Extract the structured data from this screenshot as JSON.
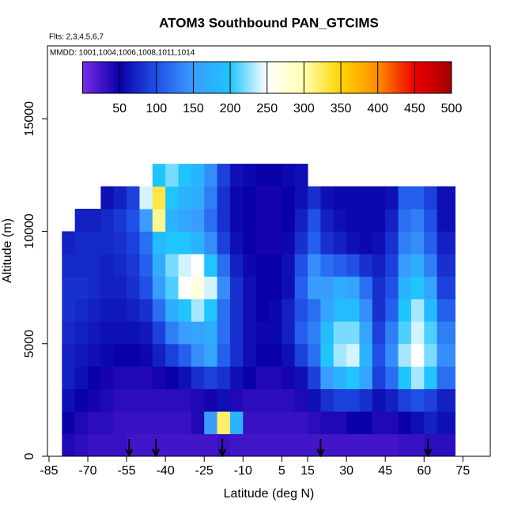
{
  "chart_data": {
    "type": "heatmap",
    "title": "ATOM3 Southbound PAN_GTCIMS",
    "subtitle": "Flts: 2,3,4,5,6,7",
    "annotation": "MMDD: 1001,1004,1006,1008,1011,1014",
    "x_label": "Latitude (deg N)",
    "y_label": "Altitude (m)",
    "xlim": [
      -85.6,
      85.6
    ],
    "ylim": [
      0,
      18240
    ],
    "xticks": [
      -85,
      -70,
      -55,
      -40,
      -25,
      -10,
      5,
      15,
      30,
      45,
      60,
      75
    ],
    "yticks": [
      0,
      5000,
      10000,
      15000
    ],
    "clim": [
      0,
      500
    ],
    "cticks": [
      50,
      100,
      150,
      200,
      250,
      300,
      350,
      400,
      450,
      500
    ],
    "colors": [
      "#7a2be8",
      "#0a00a8",
      "#2050e8",
      "#3a9cff",
      "#20c4ff",
      "#ffffff",
      "#ffffb0",
      "#ffd400",
      "#ff8c00",
      "#f00000",
      "#a00000"
    ],
    "x_bins": [
      -80,
      -75,
      -70,
      -65,
      -60,
      -55,
      -50,
      -45,
      -40,
      -35,
      -30,
      -25,
      -20,
      -15,
      -10,
      -5,
      0,
      5,
      10,
      15,
      20,
      25,
      30,
      35,
      40,
      45,
      50,
      55,
      60,
      65,
      72
    ],
    "y_bins": [
      0,
      1000,
      2000,
      3000,
      4000,
      5000,
      6000,
      7000,
      8000,
      9000,
      10000,
      11000,
      12000,
      13000
    ],
    "z": [
      [
        40,
        35,
        30,
        30,
        30,
        25,
        25,
        25,
        25,
        25,
        25,
        25,
        30,
        25,
        25,
        25,
        25,
        25,
        25,
        25,
        25,
        25,
        25,
        25,
        25,
        25,
        30,
        30,
        35,
        35
      ],
      [
        50,
        40,
        35,
        35,
        30,
        30,
        30,
        30,
        30,
        30,
        40,
        150,
        320,
        180,
        30,
        30,
        30,
        30,
        30,
        35,
        40,
        40,
        50,
        50,
        40,
        40,
        50,
        60,
        70,
        60
      ],
      [
        60,
        50,
        45,
        40,
        35,
        35,
        35,
        35,
        35,
        35,
        40,
        45,
        60,
        40,
        35,
        35,
        35,
        35,
        40,
        60,
        80,
        90,
        90,
        80,
        60,
        70,
        90,
        100,
        90,
        70
      ],
      [
        70,
        60,
        50,
        45,
        40,
        40,
        40,
        45,
        50,
        60,
        80,
        90,
        80,
        60,
        50,
        40,
        40,
        45,
        60,
        90,
        150,
        180,
        200,
        160,
        90,
        120,
        200,
        230,
        200,
        120
      ],
      [
        70,
        65,
        60,
        55,
        50,
        50,
        55,
        70,
        90,
        110,
        140,
        160,
        110,
        80,
        60,
        50,
        50,
        60,
        90,
        120,
        200,
        230,
        240,
        180,
        100,
        140,
        230,
        250,
        220,
        140
      ],
      [
        75,
        70,
        65,
        60,
        60,
        60,
        65,
        90,
        130,
        150,
        160,
        170,
        120,
        80,
        60,
        55,
        55,
        70,
        110,
        130,
        190,
        220,
        220,
        160,
        90,
        130,
        210,
        240,
        210,
        130
      ],
      [
        80,
        75,
        70,
        65,
        65,
        70,
        80,
        120,
        170,
        200,
        230,
        200,
        120,
        80,
        60,
        50,
        55,
        70,
        100,
        120,
        160,
        190,
        190,
        140,
        80,
        110,
        200,
        230,
        190,
        110
      ],
      [
        80,
        80,
        75,
        70,
        70,
        80,
        100,
        150,
        210,
        250,
        270,
        240,
        140,
        80,
        60,
        50,
        50,
        60,
        110,
        150,
        150,
        170,
        160,
        120,
        80,
        100,
        180,
        200,
        160,
        90
      ],
      [
        75,
        75,
        75,
        70,
        75,
        85,
        110,
        170,
        220,
        240,
        250,
        200,
        120,
        70,
        55,
        50,
        50,
        60,
        100,
        140,
        120,
        110,
        100,
        80,
        70,
        90,
        150,
        170,
        130,
        80
      ],
      [
        70,
        75,
        75,
        75,
        80,
        90,
        120,
        190,
        200,
        200,
        180,
        140,
        90,
        60,
        50,
        45,
        45,
        55,
        80,
        110,
        80,
        70,
        60,
        55,
        60,
        80,
        130,
        140,
        110,
        70
      ],
      [
        null,
        70,
        70,
        75,
        85,
        100,
        150,
        310,
        180,
        160,
        150,
        120,
        80,
        55,
        50,
        45,
        45,
        50,
        70,
        100,
        70,
        60,
        55,
        55,
        55,
        70,
        120,
        130,
        100,
        60
      ],
      [
        null,
        null,
        null,
        60,
        70,
        90,
        240,
        330,
        200,
        180,
        170,
        130,
        80,
        55,
        50,
        45,
        45,
        50,
        60,
        80,
        60,
        55,
        55,
        55,
        55,
        60,
        110,
        110,
        90,
        60
      ],
      [
        null,
        null,
        null,
        null,
        null,
        null,
        null,
        200,
        220,
        200,
        180,
        140,
        90,
        60,
        55,
        50,
        50,
        55,
        60,
        null,
        null,
        null,
        null,
        null,
        null,
        null,
        null,
        null,
        null,
        null
      ]
    ],
    "arrows_x": [
      -54,
      -43.7,
      -18,
      20,
      61.5
    ]
  }
}
